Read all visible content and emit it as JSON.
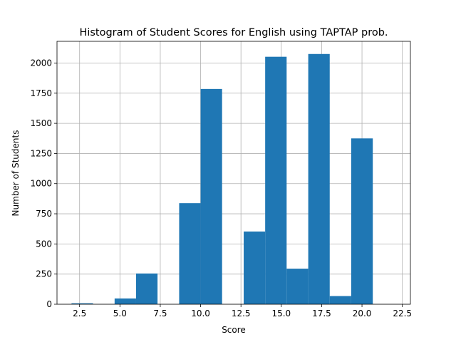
{
  "chart_data": {
    "type": "bar",
    "title": "Histogram of Student Scores for English using TAPTAP prob.",
    "xlabel": "Score",
    "ylabel": "Number of Students",
    "xlim": [
      1.1,
      23.0
    ],
    "ylim": [
      0,
      2180
    ],
    "xticks": [
      "2.5",
      "5.0",
      "7.5",
      "10.0",
      "12.5",
      "15.0",
      "17.5",
      "20.0",
      "22.5"
    ],
    "xtick_values": [
      2.5,
      5.0,
      7.5,
      10.0,
      12.5,
      15.0,
      17.5,
      20.0,
      22.5
    ],
    "yticks": [
      "0",
      "250",
      "500",
      "750",
      "1000",
      "1250",
      "1500",
      "1750",
      "2000"
    ],
    "ytick_values": [
      0,
      250,
      500,
      750,
      1000,
      1250,
      1500,
      1750,
      2000
    ],
    "grid": true,
    "bar_color": "#1f77b4",
    "bins": [
      {
        "x0": 2.0,
        "x1": 3.33,
        "count": 8
      },
      {
        "x0": 3.33,
        "x1": 4.67,
        "count": 0
      },
      {
        "x0": 4.67,
        "x1": 6.0,
        "count": 48
      },
      {
        "x0": 6.0,
        "x1": 7.33,
        "count": 255
      },
      {
        "x0": 7.33,
        "x1": 8.67,
        "count": 0
      },
      {
        "x0": 8.67,
        "x1": 10.0,
        "count": 838
      },
      {
        "x0": 10.0,
        "x1": 11.33,
        "count": 1785
      },
      {
        "x0": 11.33,
        "x1": 12.67,
        "count": 0
      },
      {
        "x0": 12.67,
        "x1": 14.0,
        "count": 603
      },
      {
        "x0": 14.0,
        "x1": 15.33,
        "count": 2052
      },
      {
        "x0": 15.33,
        "x1": 16.67,
        "count": 295
      },
      {
        "x0": 16.67,
        "x1": 18.0,
        "count": 2075
      },
      {
        "x0": 18.0,
        "x1": 19.33,
        "count": 68
      },
      {
        "x0": 19.33,
        "x1": 20.67,
        "count": 1375
      },
      {
        "x0": 20.67,
        "x1": 22.0,
        "count": 0
      },
      {
        "x0": 22.0,
        "x1": 23.33,
        "count": 0
      }
    ]
  }
}
